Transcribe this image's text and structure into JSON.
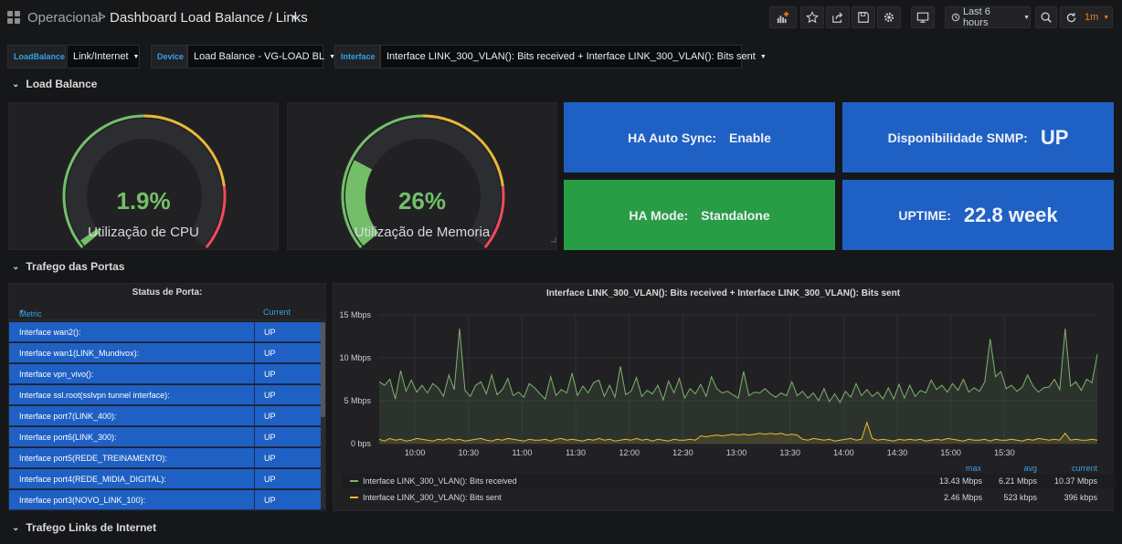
{
  "header": {
    "folder": "Operacional",
    "separator": ">",
    "title": "Dashboard Load Balance / Links",
    "time_range": "Last 6 hours",
    "refresh": "1m"
  },
  "variables": [
    {
      "label": "LoadBalance",
      "value": "Link/Internet"
    },
    {
      "label": "Device",
      "value": "Load Balance - VG-LOAD BL"
    },
    {
      "label": "Interface",
      "value": "Interface LINK_300_VLAN(): Bits received + Interface LINK_300_VLAN(): Bits sent"
    }
  ],
  "rows": {
    "load_balance": "Load Balance",
    "trafego_portas": "Trafego das Portas",
    "trafego_links": "Trafego Links de Internet"
  },
  "gauges": {
    "cpu": {
      "value": "1.9%",
      "label": "Utilização de CPU",
      "percent": 1.9
    },
    "memory": {
      "value": "26%",
      "label": "Utilização de Memoria",
      "percent": 26
    }
  },
  "stats": {
    "ha_auto_sync": {
      "label": "HA Auto Sync:",
      "value": "Enable",
      "color": "#1f60c4"
    },
    "snmp": {
      "label": "Disponibilidade SNMP:",
      "value": "UP",
      "color": "#1f60c4"
    },
    "ha_mode": {
      "label": "HA Mode:",
      "value": "Standalone",
      "color": "#299c46"
    },
    "uptime": {
      "label": "UPTIME:",
      "value": "22.8 week",
      "color": "#1f60c4"
    }
  },
  "port_table": {
    "title": "Status de Porta:",
    "columns": [
      "Metric",
      "Current"
    ],
    "rows": [
      {
        "metric": "Interface wan2():",
        "current": "UP"
      },
      {
        "metric": "Interface wan1(LINK_Mundivox):",
        "current": "UP"
      },
      {
        "metric": "Interface vpn_vivo():",
        "current": "UP"
      },
      {
        "metric": "Interface ssl.root(sslvpn tunnel interface):",
        "current": "UP"
      },
      {
        "metric": "Interface port7(LINK_400):",
        "current": "UP"
      },
      {
        "metric": "Interface port6(LINK_300):",
        "current": "UP"
      },
      {
        "metric": "Interface port5(REDE_TREINAMENTO):",
        "current": "UP"
      },
      {
        "metric": "Interface port4(REDE_MIDIA_DIGITAL):",
        "current": "UP"
      },
      {
        "metric": "Interface port3(NOVO_LINK_100):",
        "current": "UP"
      }
    ]
  },
  "chart_data": {
    "type": "area",
    "title": "Interface LINK_300_VLAN(): Bits received + Interface LINK_300_VLAN(): Bits sent",
    "xlabel": "",
    "ylabel": "",
    "ylim": [
      0,
      15
    ],
    "y_unit": "Mbps",
    "y_ticks": [
      "0 bps",
      "5 Mbps",
      "10 Mbps",
      "15 Mbps"
    ],
    "x_ticks": [
      "10:00",
      "10:30",
      "11:00",
      "11:30",
      "12:00",
      "12:30",
      "13:00",
      "13:30",
      "14:00",
      "14:30",
      "15:00",
      "15:30"
    ],
    "x_start_minutes": 580,
    "x_step_minutes": 3,
    "grid": true,
    "legend_columns": [
      "max",
      "avg",
      "current"
    ],
    "series": [
      {
        "name": "Interface LINK_300_VLAN(): Bits received",
        "color": "#7eb26d",
        "values": [
          7.2,
          6.8,
          7.5,
          5.2,
          8.5,
          6.1,
          7.4,
          6.0,
          6.8,
          5.9,
          7.0,
          6.5,
          5.5,
          8.0,
          6.3,
          13.4,
          6.2,
          5.5,
          6.8,
          7.2,
          5.8,
          8.0,
          5.7,
          6.3,
          7.6,
          5.6,
          6.0,
          5.4,
          7.0,
          6.5,
          5.8,
          5.2,
          7.8,
          5.6,
          6.3,
          5.9,
          8.2,
          5.6,
          6.7,
          5.9,
          7.1,
          7.4,
          5.5,
          6.8,
          5.4,
          9.0,
          5.7,
          6.1,
          7.7,
          5.5,
          6.2,
          5.8,
          6.8,
          5.1,
          7.3,
          5.9,
          7.6,
          5.3,
          6.4,
          5.8,
          6.9,
          5.5,
          7.8,
          6.4,
          5.9,
          6.1,
          5.7,
          5.3,
          8.4,
          5.6,
          6.0,
          5.9,
          6.4,
          5.8,
          5.4,
          5.9,
          5.6,
          7.2,
          5.6,
          6.1,
          5.3,
          5.9,
          5.0,
          6.4,
          4.9,
          5.8,
          4.8,
          6.1,
          5.4,
          7.0,
          5.6,
          6.3,
          5.5,
          6.0,
          5.2,
          6.5,
          5.2,
          6.9,
          5.3,
          6.8,
          5.5,
          6.2,
          5.9,
          7.4,
          6.3,
          6.8,
          6.0,
          7.0,
          6.2,
          7.5,
          6.0,
          6.5,
          6.1,
          7.2,
          12.2,
          7.8,
          8.4,
          6.4,
          6.8,
          6.1,
          6.6,
          8.0,
          6.7,
          6.0,
          6.5,
          6.6,
          7.5,
          6.3,
          13.4,
          6.7,
          7.2,
          6.2,
          7.5,
          7.1,
          10.4
        ]
      },
      {
        "name": "Interface LINK_300_VLAN(): Bits sent",
        "color": "#eab839",
        "values": [
          0.5,
          0.3,
          0.6,
          0.4,
          0.5,
          0.3,
          0.4,
          0.6,
          0.5,
          0.4,
          0.3,
          0.5,
          0.4,
          0.6,
          0.4,
          0.5,
          0.3,
          0.4,
          0.5,
          0.6,
          0.4,
          0.3,
          0.5,
          0.4,
          0.6,
          0.5,
          0.4,
          0.3,
          0.5,
          0.4,
          0.4,
          0.5,
          0.3,
          0.5,
          0.6,
          0.4,
          0.5,
          0.4,
          0.3,
          0.5,
          0.4,
          0.6,
          0.4,
          0.5,
          0.3,
          0.4,
          0.5,
          0.4,
          0.6,
          0.4,
          0.5,
          0.3,
          0.5,
          0.4,
          0.3,
          0.5,
          0.4,
          0.4,
          0.5,
          0.4,
          0.9,
          0.8,
          0.9,
          1.0,
          0.9,
          1.0,
          1.1,
          1.0,
          1.1,
          1.0,
          1.1,
          1.2,
          1.1,
          1.2,
          1.1,
          1.2,
          1.0,
          1.1,
          1.0,
          0.5,
          0.4,
          0.6,
          0.5,
          0.4,
          0.5,
          0.3,
          0.4,
          0.5,
          0.6,
          0.4,
          0.5,
          2.46,
          0.6,
          0.4,
          0.5,
          0.4,
          0.3,
          0.5,
          0.4,
          0.5,
          0.4,
          0.5,
          0.3,
          0.4,
          0.5,
          0.4,
          0.6,
          0.5,
          0.4,
          0.3,
          0.5,
          0.4,
          0.4,
          0.5,
          0.3,
          0.5,
          0.4,
          0.4,
          0.5,
          0.4,
          0.3,
          0.5,
          0.4,
          0.6,
          0.5,
          0.4,
          0.5,
          0.4,
          1.2,
          0.4,
          0.5,
          0.4,
          0.4,
          0.5,
          0.4
        ]
      }
    ],
    "legend": [
      {
        "name": "Interface LINK_300_VLAN(): Bits received",
        "max": "13.43 Mbps",
        "avg": "6.21 Mbps",
        "current": "10.37 Mbps"
      },
      {
        "name": "Interface LINK_300_VLAN(): Bits sent",
        "max": "2.46 Mbps",
        "avg": "523 kbps",
        "current": "396 kbps"
      }
    ]
  },
  "colors": {
    "green": "#73bf69",
    "yellow": "#eab839",
    "red": "#f2495c",
    "blue_link": "#33a2e5"
  },
  "icons": [
    "apps-icon",
    "add-panel-icon",
    "star-icon",
    "share-icon",
    "save-icon",
    "gear-icon",
    "tv-mode-icon",
    "clock-icon",
    "zoom-out-icon",
    "refresh-icon"
  ]
}
